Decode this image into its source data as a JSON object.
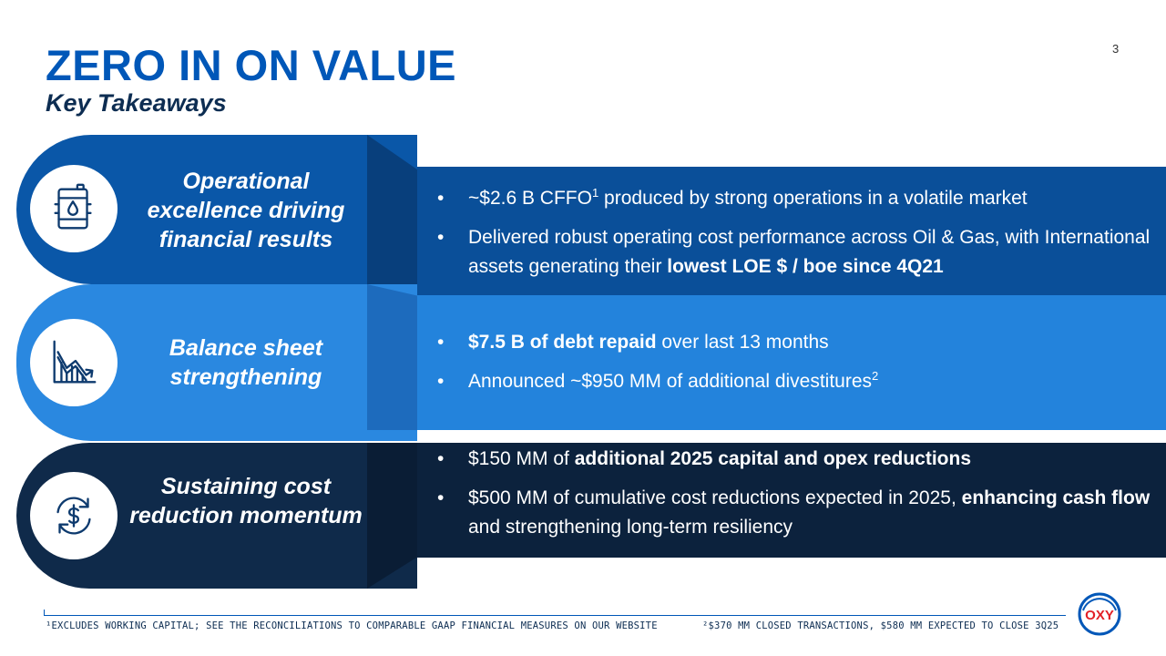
{
  "page": {
    "title": "ZERO IN ON VALUE",
    "subtitle": "Key Takeaways",
    "page_number": "3"
  },
  "colors": {
    "brand_blue": "#0057B8",
    "band1_tab": "#0a57a8",
    "band1_panel": "#0a4f99",
    "band2_tab": "#2a88e0",
    "band2_panel": "#2383dc",
    "band3_tab": "#0f2a4a",
    "band3_panel": "#0c223d",
    "logo_red": "#e21f26"
  },
  "sections": [
    {
      "icon": "oil-barrel-icon",
      "heading": "Operational excellence driving financial results",
      "bullets": [
        {
          "parts": [
            {
              "t": "~$2.6 B CFFO"
            },
            {
              "t": "1",
              "sup": true
            },
            {
              "t": " produced by strong operations in a volatile market"
            }
          ]
        },
        {
          "parts": [
            {
              "t": "Delivered robust operating cost performance across Oil & Gas, with International assets generating their "
            },
            {
              "t": "lowest LOE $ / boe since 4Q21",
              "b": true
            }
          ]
        }
      ]
    },
    {
      "icon": "declining-chart-icon",
      "heading": "Balance sheet strengthening",
      "bullets": [
        {
          "parts": [
            {
              "t": "$7.5 B of debt repaid",
              "b": true
            },
            {
              "t": " over last 13 months"
            }
          ]
        },
        {
          "parts": [
            {
              "t": "Announced ~$950 MM of additional divestitures"
            },
            {
              "t": "2",
              "sup": true
            }
          ]
        }
      ]
    },
    {
      "icon": "dollar-cycle-icon",
      "heading": "Sustaining cost reduction momentum",
      "bullets": [
        {
          "parts": [
            {
              "t": "$150 MM of "
            },
            {
              "t": "additional 2025 capital and opex reductions",
              "b": true
            }
          ]
        },
        {
          "parts": [
            {
              "t": "$500 MM of cumulative cost reductions expected in 2025, "
            },
            {
              "t": "enhancing cash flow",
              "b": true
            },
            {
              "t": " and strengthening long-term resiliency"
            }
          ]
        }
      ]
    }
  ],
  "footnotes": {
    "note1": "¹EXCLUDES WORKING CAPITAL; SEE THE RECONCILIATIONS TO COMPARABLE GAAP FINANCIAL MEASURES ON OUR WEBSITE",
    "note2": "²$370 MM CLOSED TRANSACTIONS, $580 MM EXPECTED TO CLOSE 3Q25"
  },
  "logo": {
    "text": "OXY"
  }
}
